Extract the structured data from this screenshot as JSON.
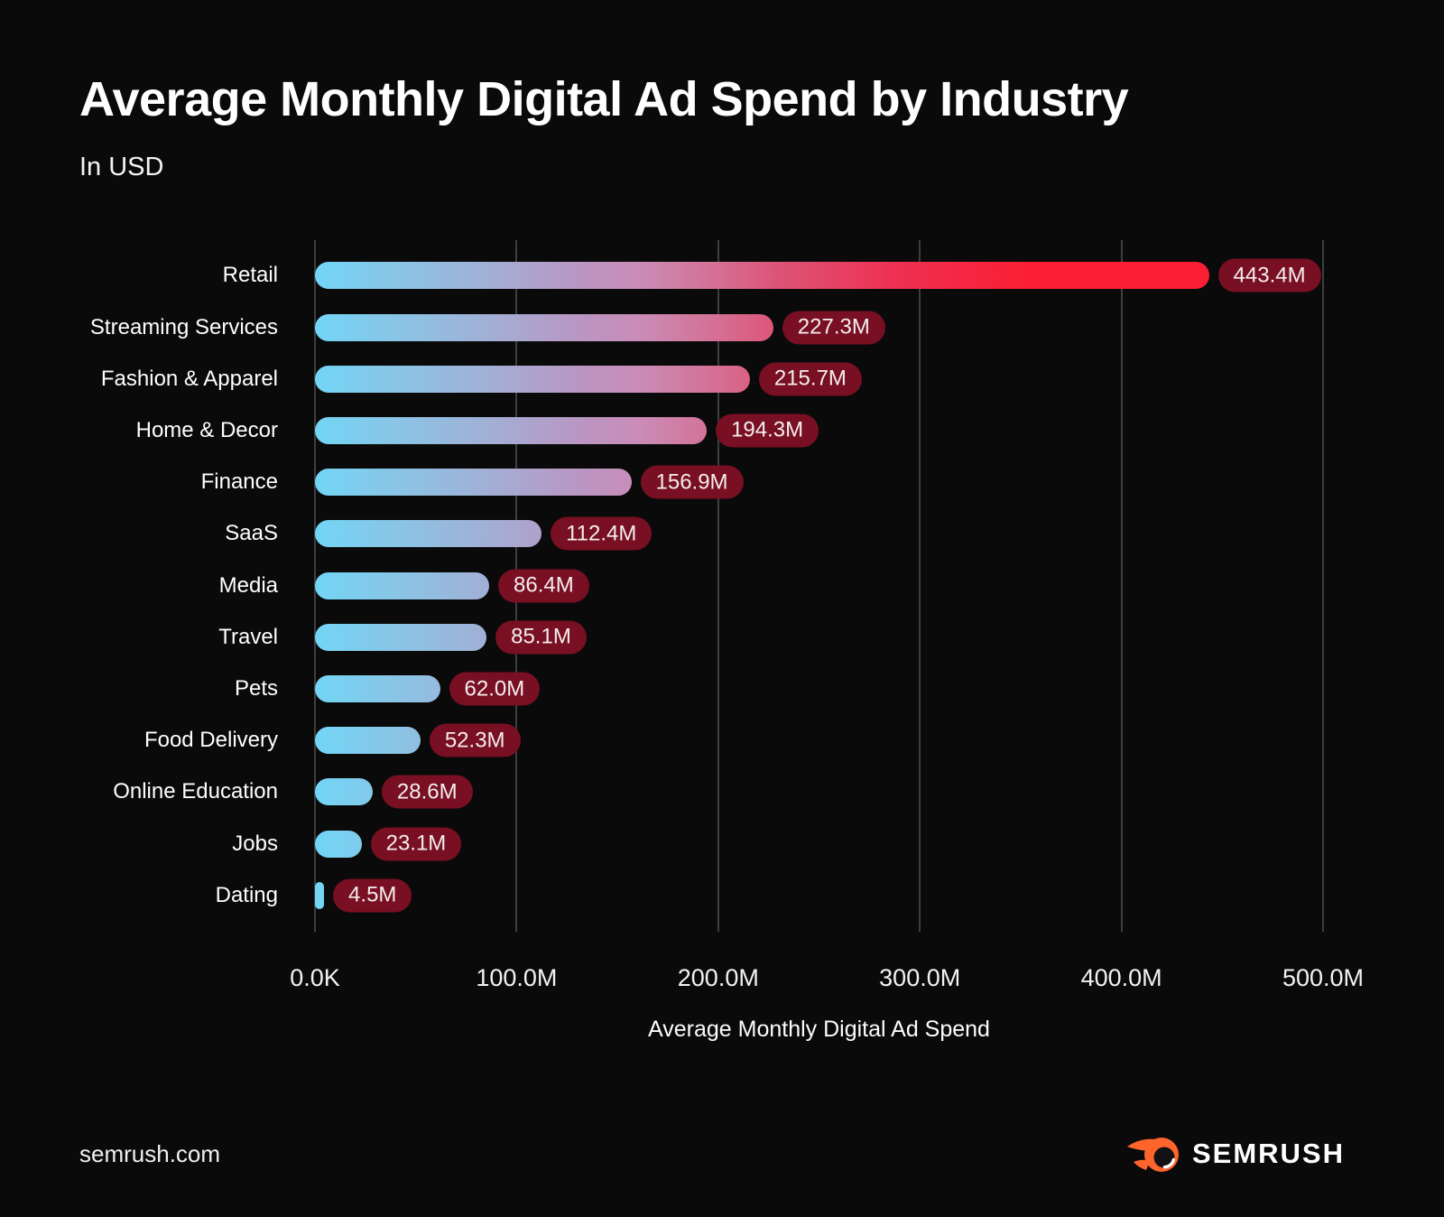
{
  "title": "Average Monthly Digital Ad Spend by Industry",
  "subtitle": "In USD",
  "footer": {
    "site": "semrush.com",
    "brand": "SEMRUSH"
  },
  "colors": {
    "background": "#0a0a0b",
    "grid": "#3e3e41",
    "pill_bg": "#780f22",
    "pill_text": "#f4eded",
    "bar_start": "#72d5f5",
    "bar_end": "#fb1e33",
    "logo_orange": "#ff642d",
    "bar_gradient_stops": [
      [
        "#72d5f5",
        0
      ],
      [
        "#8cc3e4",
        10
      ],
      [
        "#a3aed4",
        20
      ],
      [
        "#bb95c2",
        30
      ],
      [
        "#c98db8",
        36
      ],
      [
        "#d56f93",
        45
      ],
      [
        "#dd5376",
        52
      ],
      [
        "#ee3052",
        65
      ],
      [
        "#fb1e33",
        80
      ],
      [
        "#fb1e33",
        100
      ]
    ]
  },
  "chart_data": {
    "type": "bar",
    "orientation": "horizontal",
    "title": "Average Monthly Digital Ad Spend by Industry",
    "subtitle": "In USD",
    "categories": [
      "Retail",
      "Streaming Services",
      "Fashion & Apparel",
      "Home & Decor",
      "Finance",
      "SaaS",
      "Media",
      "Travel",
      "Pets",
      "Food Delivery",
      "Online Education",
      "Jobs",
      "Dating"
    ],
    "values": [
      443.4,
      227.3,
      215.7,
      194.3,
      156.9,
      112.4,
      86.4,
      85.1,
      62.0,
      52.3,
      28.6,
      23.1,
      4.5
    ],
    "value_labels": [
      "443.4M",
      "227.3M",
      "215.7M",
      "194.3M",
      "156.9M",
      "112.4M",
      "86.4M",
      "85.1M",
      "62.0M",
      "52.3M",
      "28.6M",
      "23.1M",
      "4.5M"
    ],
    "unit": "USD (millions)",
    "xlabel": "Average Monthly Digital Ad Spend",
    "x_ticks": [
      "0.0K",
      "100.0M",
      "200.0M",
      "300.0M",
      "400.0M",
      "500.0M"
    ],
    "xlim": [
      0,
      500
    ],
    "grid": "vertical",
    "legend": false
  }
}
